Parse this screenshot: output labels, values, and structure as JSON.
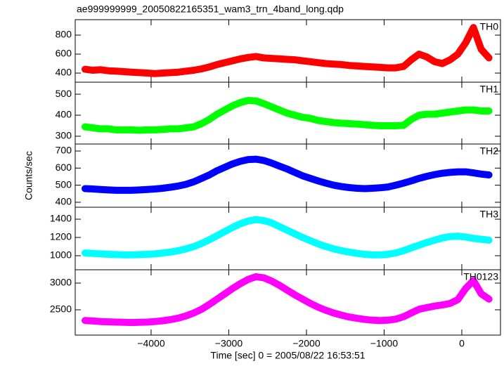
{
  "chart_data": [
    {
      "type": "line",
      "title": "ae999999999_20050822165351_wam3_trn_4band_long.qdp",
      "xlim": [
        -4977,
        498
      ],
      "ylim": [
        304,
        963
      ],
      "yticks": [
        400,
        600,
        800
      ],
      "x": [
        -4850,
        -4750,
        -4650,
        -4550,
        -4450,
        -4350,
        -4250,
        -4150,
        -4050,
        -3950,
        -3850,
        -3750,
        -3650,
        -3550,
        -3450,
        -3350,
        -3250,
        -3150,
        -3050,
        -2950,
        -2850,
        -2750,
        -2650,
        -2550,
        -2450,
        -2350,
        -2250,
        -2150,
        -2050,
        -1950,
        -1850,
        -1750,
        -1650,
        -1550,
        -1450,
        -1350,
        -1250,
        -1150,
        -1050,
        -950,
        -850,
        -750,
        -650,
        -550,
        -450,
        -350,
        -250,
        -150,
        -50,
        50,
        150,
        250,
        350
      ],
      "series": [
        {
          "name": "TH0",
          "color": "#ff0000",
          "values": [
            440,
            430,
            435,
            425,
            420,
            415,
            410,
            405,
            400,
            395,
            400,
            405,
            410,
            420,
            430,
            445,
            465,
            490,
            510,
            530,
            550,
            565,
            575,
            560,
            555,
            550,
            545,
            540,
            530,
            520,
            510,
            500,
            495,
            490,
            480,
            475,
            470,
            465,
            460,
            455,
            455,
            470,
            540,
            600,
            570,
            520,
            500,
            540,
            600,
            720,
            880,
            650,
            560
          ]
        }
      ]
    },
    {
      "type": "line",
      "xlim": [
        -4977,
        498
      ],
      "ylim": [
        263,
        557
      ],
      "yticks": [
        300,
        400,
        500
      ],
      "x": [
        -4850,
        -4750,
        -4650,
        -4550,
        -4450,
        -4350,
        -4250,
        -4150,
        -4050,
        -3950,
        -3850,
        -3750,
        -3650,
        -3550,
        -3450,
        -3350,
        -3250,
        -3150,
        -3050,
        -2950,
        -2850,
        -2750,
        -2650,
        -2550,
        -2450,
        -2350,
        -2250,
        -2150,
        -2050,
        -1950,
        -1850,
        -1750,
        -1650,
        -1550,
        -1450,
        -1350,
        -1250,
        -1150,
        -1050,
        -950,
        -850,
        -750,
        -650,
        -550,
        -450,
        -350,
        -250,
        -150,
        -50,
        50,
        150,
        250,
        350
      ],
      "series": [
        {
          "name": "TH1",
          "color": "#00ff00",
          "values": [
            345,
            340,
            335,
            335,
            330,
            330,
            330,
            328,
            330,
            330,
            332,
            335,
            335,
            340,
            345,
            360,
            380,
            405,
            425,
            445,
            460,
            470,
            468,
            455,
            440,
            425,
            410,
            400,
            390,
            385,
            375,
            370,
            365,
            362,
            360,
            358,
            355,
            352,
            350,
            350,
            350,
            352,
            380,
            400,
            405,
            405,
            410,
            415,
            420,
            425,
            425,
            420,
            420
          ]
        }
      ]
    },
    {
      "type": "line",
      "y_label": "Counts/sec",
      "xlim": [
        -4977,
        498
      ],
      "ylim": [
        371,
        741
      ],
      "yticks": [
        400,
        500,
        600,
        700
      ],
      "x": [
        -4850,
        -4750,
        -4650,
        -4550,
        -4450,
        -4350,
        -4250,
        -4150,
        -4050,
        -3950,
        -3850,
        -3750,
        -3650,
        -3550,
        -3450,
        -3350,
        -3250,
        -3150,
        -3050,
        -2950,
        -2850,
        -2750,
        -2650,
        -2550,
        -2450,
        -2350,
        -2250,
        -2150,
        -2050,
        -1950,
        -1850,
        -1750,
        -1650,
        -1550,
        -1450,
        -1350,
        -1250,
        -1150,
        -1050,
        -950,
        -850,
        -750,
        -650,
        -550,
        -450,
        -350,
        -250,
        -150,
        -50,
        50,
        150,
        250,
        350
      ],
      "series": [
        {
          "name": "TH2",
          "color": "#0000ff",
          "values": [
            480,
            478,
            475,
            472,
            470,
            470,
            470,
            472,
            475,
            478,
            482,
            488,
            495,
            505,
            520,
            540,
            560,
            585,
            605,
            625,
            640,
            650,
            652,
            645,
            630,
            612,
            595,
            575,
            555,
            540,
            525,
            512,
            500,
            492,
            486,
            482,
            480,
            482,
            485,
            490,
            500,
            512,
            525,
            540,
            552,
            562,
            570,
            575,
            578,
            578,
            572,
            565,
            560
          ]
        }
      ]
    },
    {
      "type": "line",
      "xlim": [
        -4977,
        498
      ],
      "ylim": [
        846,
        1531
      ],
      "yticks": [
        1000,
        1200,
        1400
      ],
      "x": [
        -4850,
        -4750,
        -4650,
        -4550,
        -4450,
        -4350,
        -4250,
        -4150,
        -4050,
        -3950,
        -3850,
        -3750,
        -3650,
        -3550,
        -3450,
        -3350,
        -3250,
        -3150,
        -3050,
        -2950,
        -2850,
        -2750,
        -2650,
        -2550,
        -2450,
        -2350,
        -2250,
        -2150,
        -2050,
        -1950,
        -1850,
        -1750,
        -1650,
        -1550,
        -1450,
        -1350,
        -1250,
        -1150,
        -1050,
        -950,
        -850,
        -750,
        -650,
        -550,
        -450,
        -350,
        -250,
        -150,
        -50,
        50,
        150,
        250,
        350
      ],
      "series": [
        {
          "name": "TH3",
          "color": "#00ffff",
          "values": [
            1030,
            1025,
            1020,
            1015,
            1012,
            1010,
            1010,
            1012,
            1015,
            1020,
            1030,
            1040,
            1055,
            1075,
            1100,
            1135,
            1175,
            1220,
            1265,
            1310,
            1350,
            1380,
            1395,
            1385,
            1360,
            1320,
            1280,
            1240,
            1200,
            1165,
            1130,
            1100,
            1075,
            1055,
            1040,
            1025,
            1015,
            1010,
            1010,
            1015,
            1030,
            1055,
            1085,
            1115,
            1145,
            1170,
            1195,
            1210,
            1215,
            1205,
            1190,
            1180,
            1170
          ]
        }
      ]
    },
    {
      "type": "line",
      "x_label": "Time [sec] 0 = 2005/08/22 16:53:51",
      "xlim": [
        -4977,
        498
      ],
      "xticks": [
        {
          "value": -4000,
          "label": "−4000"
        },
        {
          "value": -3000,
          "label": "−3000"
        },
        {
          "value": -2000,
          "label": "−2000"
        },
        {
          "value": -1000,
          "label": "−1000"
        },
        0
      ],
      "ylim": [
        2026,
        3250
      ],
      "yticks": [
        2500,
        3000
      ],
      "x": [
        -4850,
        -4750,
        -4650,
        -4550,
        -4450,
        -4350,
        -4250,
        -4150,
        -4050,
        -3950,
        -3850,
        -3750,
        -3650,
        -3550,
        -3450,
        -3350,
        -3250,
        -3150,
        -3050,
        -2950,
        -2850,
        -2750,
        -2650,
        -2550,
        -2450,
        -2350,
        -2250,
        -2150,
        -2050,
        -1950,
        -1850,
        -1750,
        -1650,
        -1550,
        -1450,
        -1350,
        -1250,
        -1150,
        -1050,
        -950,
        -850,
        -750,
        -650,
        -550,
        -450,
        -350,
        -250,
        -150,
        -50,
        50,
        150,
        250,
        350
      ],
      "series": [
        {
          "name": "TH0123",
          "color": "#ff00ff",
          "values": [
            2300,
            2290,
            2280,
            2275,
            2270,
            2265,
            2262,
            2265,
            2270,
            2280,
            2295,
            2315,
            2345,
            2385,
            2440,
            2510,
            2600,
            2700,
            2800,
            2900,
            2990,
            3070,
            3120,
            3100,
            3040,
            2960,
            2870,
            2780,
            2700,
            2620,
            2550,
            2490,
            2440,
            2400,
            2365,
            2340,
            2320,
            2305,
            2300,
            2305,
            2325,
            2370,
            2440,
            2510,
            2540,
            2570,
            2590,
            2620,
            2690,
            2900,
            3050,
            2800,
            2700
          ]
        }
      ]
    }
  ]
}
